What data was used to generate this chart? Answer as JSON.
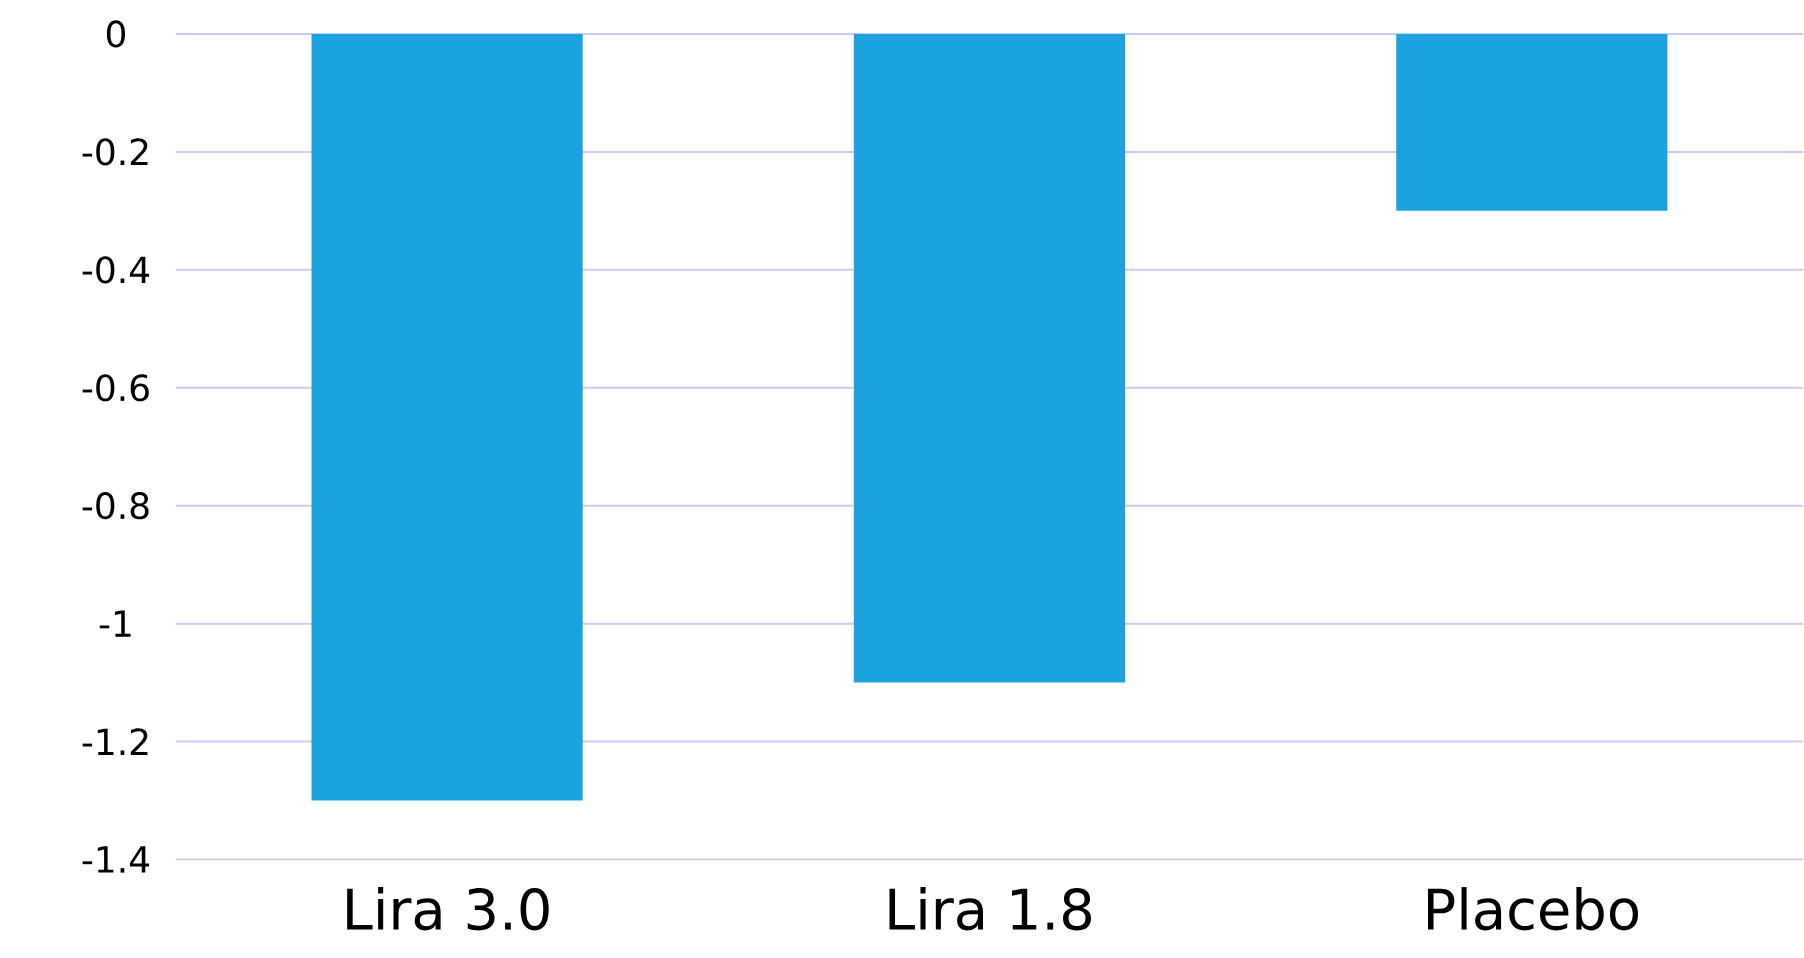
{
  "chart_data": {
    "type": "bar",
    "categories": [
      "Lira 3.0",
      "Lira 1.8",
      "Placebo"
    ],
    "values": [
      -1.3,
      -1.1,
      -0.3
    ],
    "color": "#1ba3e0",
    "ylim": [
      -1.4,
      0
    ],
    "yticks": [
      -1.4,
      -1.2,
      -1,
      -0.8,
      -0.6,
      -0.4,
      -0.2,
      0
    ],
    "grid": "y"
  }
}
